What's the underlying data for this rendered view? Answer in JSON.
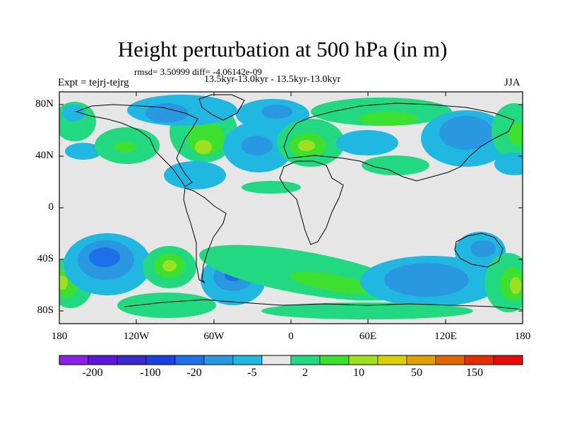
{
  "title": "Height perturbation at 500 hPa (in m)",
  "stats_text": "rmsd= 3.50999 diff= -4.06142e-09",
  "subtitle": "13.5kyr-13.0kyr - 13.5kyr-13.0kyr",
  "experiment": "Expt = tejrj-tejrg",
  "season": "JJA",
  "lat_labels": [
    "80N",
    "40N",
    "0",
    "40S",
    "80S"
  ],
  "lon_labels": [
    "180",
    "120W",
    "60W",
    "0",
    "60E",
    "120E",
    "180"
  ],
  "colorbar": {
    "labels": [
      "-200",
      "-100",
      "-20",
      "-5",
      "2",
      "10",
      "50",
      "150"
    ],
    "colors": [
      "#8a1fe8",
      "#5a18d8",
      "#3a2ad0",
      "#1c3fe0",
      "#1e70e8",
      "#2a98e0",
      "#20b8e0",
      "#e6e6e6",
      "#22d880",
      "#3ee030",
      "#9ee020",
      "#d8d000",
      "#e0a000",
      "#e06800",
      "#e03000",
      "#e80a0a"
    ]
  },
  "map": {
    "type": "contour-map",
    "variable": "geopotential height perturbation at 500 hPa",
    "units": "m",
    "lat_range": [
      -90,
      90
    ],
    "lon_range": [
      -180,
      180
    ],
    "colors": {
      "background": "#e6e6e6",
      "light_blue": "#20b8e0",
      "mid_blue": "#2a98e0",
      "dark_blue": "#1e70e8",
      "teal": "#22d880",
      "green": "#3ee030",
      "yellow_green": "#9ee020",
      "yellow": "#d8d000"
    }
  }
}
